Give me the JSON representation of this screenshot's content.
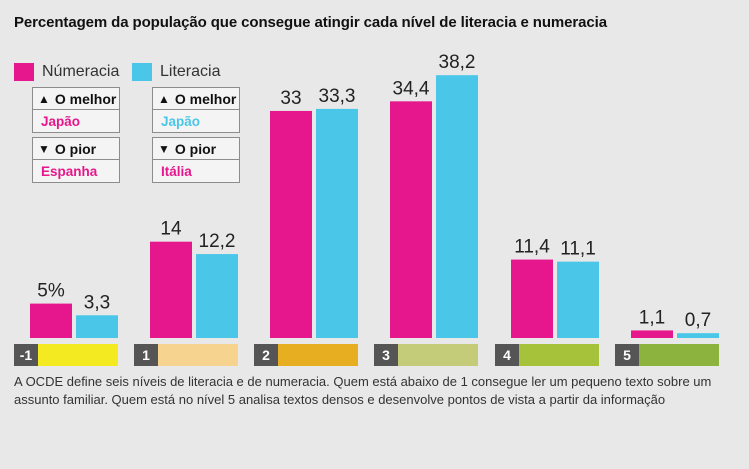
{
  "title": "Percentagem da população que consegue atingir cada nível de literacia e numeracia",
  "legend": [
    {
      "label": "Númeracia",
      "color": "#e6168c"
    },
    {
      "label": "Literacia",
      "color": "#4ac6e8"
    }
  ],
  "boxes": {
    "numeracia": {
      "best_label": "O melhor",
      "best_value": "Japão",
      "worst_label": "O pior",
      "worst_value": "Espanha"
    },
    "literacia": {
      "best_label": "O melhor",
      "best_value": "Japão",
      "worst_label": "O pior",
      "worst_value": "Itália"
    }
  },
  "chart_data": {
    "type": "bar",
    "categories": [
      "-1",
      "1",
      "2",
      "3",
      "4",
      "5"
    ],
    "category_colors": [
      "#f4ea22",
      "#f6d48f",
      "#e8ae21",
      "#c4cc7a",
      "#a6c23a",
      "#8db33f"
    ],
    "series": [
      {
        "name": "Númeracia",
        "color": "#e6168c",
        "values": [
          5,
          14,
          33,
          34.4,
          11.4,
          1.1
        ],
        "labels": [
          "5%",
          "14",
          "33",
          "34,4",
          "11,4",
          "1,1"
        ]
      },
      {
        "name": "Literacia",
        "color": "#4ac6e8",
        "values": [
          3.3,
          12.2,
          33.3,
          38.2,
          11.1,
          0.7
        ],
        "labels": [
          "3,3",
          "12,2",
          "33,3",
          "38,2",
          "11,1",
          "0,7"
        ]
      }
    ],
    "ylim": [
      0,
      40
    ]
  },
  "footnote": "A OCDE define seis níveis de literacia e de numeracia. Quem está abaixo de 1 consegue ler um pequeno texto sobre um assunto familiar. Quem está no nível 5 analisa textos densos e desenvolve pontos de vista a partir da informação"
}
